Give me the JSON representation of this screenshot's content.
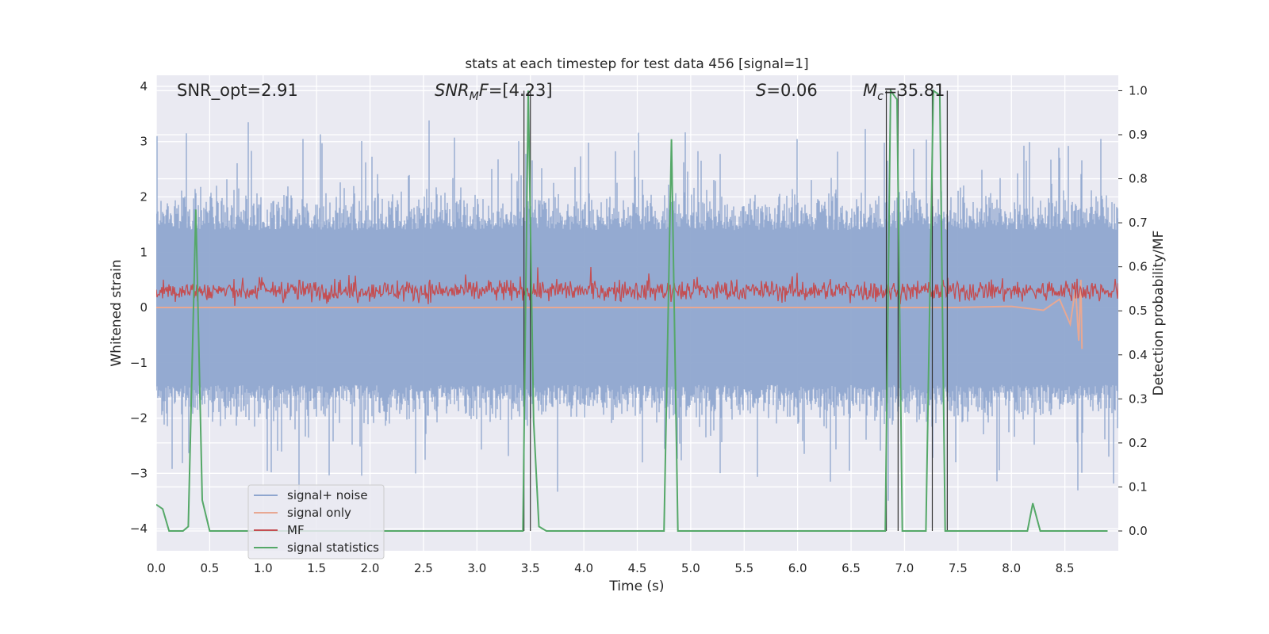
{
  "chart_data": {
    "type": "line",
    "title": "stats at each timestep for test data 456 [signal=1]",
    "xlabel": "Time (s)",
    "ylabel": "Whitened strain",
    "y2label": "Detection probability/MF",
    "xlim": [
      0.0,
      9.0
    ],
    "ylim": [
      -4.4,
      4.2
    ],
    "y2lim": [
      -0.045,
      1.035
    ],
    "x_ticks": [
      "0.0",
      "0.5",
      "1.0",
      "1.5",
      "2.0",
      "2.5",
      "3.0",
      "3.5",
      "4.0",
      "4.5",
      "5.0",
      "5.5",
      "6.0",
      "6.5",
      "7.0",
      "7.5",
      "8.0",
      "8.5"
    ],
    "y_ticks": [
      "4",
      "3",
      "2",
      "1",
      "0",
      "−1",
      "−2",
      "−3",
      "−4"
    ],
    "y2_ticks": [
      "1.0",
      "0.9",
      "0.8",
      "0.7",
      "0.6",
      "0.5",
      "0.4",
      "0.3",
      "0.2",
      "0.1",
      "0.0"
    ],
    "grid": true,
    "legend_position": "lower-left",
    "annotations": [
      {
        "name": "snr-opt",
        "text": "SNR_opt=2.91"
      },
      {
        "name": "snr-mf",
        "text": "SNR_MF=[4.23]"
      },
      {
        "name": "s-value",
        "text": "S=0.06"
      },
      {
        "name": "mc-value",
        "text": "M_c=35.81"
      }
    ],
    "series": [
      {
        "name": "signal+ noise",
        "color": "#8fa6cf",
        "axis": "left",
        "description_amplitude": [
          -4.0,
          3.6
        ]
      },
      {
        "name": "signal only",
        "color": "#e8a893",
        "axis": "left",
        "x": [
          0.0,
          7.5,
          8.0,
          8.3,
          8.45,
          8.55,
          8.6,
          8.63,
          8.65,
          8.66
        ],
        "y": [
          0.0,
          0.0,
          0.02,
          -0.05,
          0.15,
          -0.3,
          0.35,
          -0.6,
          0.5,
          -0.75
        ]
      },
      {
        "name": "MF",
        "color": "#c44e52",
        "axis": "left",
        "description_amplitude": [
          0.0,
          1.0
        ]
      },
      {
        "name": "signal statistics",
        "color": "#55a868",
        "axis": "right",
        "x": [
          0.0,
          0.06,
          0.12,
          0.25,
          0.3,
          0.37,
          0.43,
          0.5,
          3.43,
          3.48,
          3.53,
          3.58,
          3.65,
          4.75,
          4.82,
          4.88,
          6.82,
          6.87,
          6.93,
          6.98,
          7.2,
          7.27,
          7.33,
          7.38,
          7.43,
          8.15,
          8.2,
          8.27,
          8.9
        ],
        "y": [
          0.06,
          0.05,
          0.0,
          0.0,
          0.01,
          0.73,
          0.07,
          0.0,
          0.0,
          1.0,
          0.25,
          0.01,
          0.0,
          0.0,
          0.89,
          0.0,
          0.0,
          1.0,
          0.98,
          0.0,
          0.0,
          1.0,
          0.99,
          0.0,
          0.0,
          0.0,
          0.063,
          0.0,
          0.0
        ]
      }
    ],
    "threshold_lines_x": [
      3.44,
      3.5,
      6.83,
      6.94,
      7.26,
      7.4
    ]
  }
}
